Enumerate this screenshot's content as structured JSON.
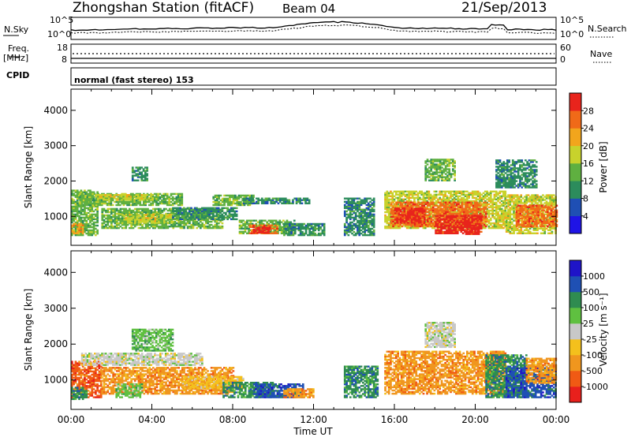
{
  "header": {
    "station": "Zhongshan Station (fitACF)",
    "beam": "Beam 04",
    "date": "21/Sep/2013"
  },
  "panels": {
    "nsky_label": "N.Sky",
    "nsky_ticks": [
      "10^5",
      "10^0"
    ],
    "nsearch_label": "N.Search",
    "nsearch_ticks": [
      "10^5",
      "10^0"
    ],
    "freq_label_top": "Freq.",
    "freq_label_unit": "[MHz]",
    "freq_ticks": [
      "18",
      "8"
    ],
    "nave_label": "Nave",
    "nave_ticks": [
      "60",
      "0"
    ],
    "cpid_label": "CPID",
    "cpid_text": "normal (fast stereo) 153"
  },
  "chart_data": [
    {
      "type": "heatmap",
      "name": "power",
      "ylabel": "Slant Range [km]",
      "yticks": [
        "1000",
        "2000",
        "3000",
        "4000"
      ],
      "ylim": [
        180,
        4600
      ],
      "xlim": [
        0,
        24
      ],
      "colorbar_label": "Power [dB]",
      "colorbar_ticks": [
        "4",
        "8",
        "12",
        "16",
        "20",
        "24",
        "28"
      ],
      "colors": [
        "#1f14e6",
        "#1f4fb4",
        "#2c8c5c",
        "#5fb040",
        "#c8d22c",
        "#f2a51c",
        "#f06a18",
        "#e8241c"
      ],
      "regions": [
        {
          "t": [
            0.0,
            1.3
          ],
          "r": [
            450,
            1750
          ],
          "level": 3
        },
        {
          "t": [
            0.0,
            0.6
          ],
          "r": [
            500,
            800
          ],
          "level": 5
        },
        {
          "t": [
            0.4,
            5.5
          ],
          "r": [
            1300,
            1650
          ],
          "level": 3
        },
        {
          "t": [
            1.2,
            4.0
          ],
          "r": [
            1450,
            1600
          ],
          "level": 4
        },
        {
          "t": [
            1.5,
            7.5
          ],
          "r": [
            650,
            1200
          ],
          "level": 3
        },
        {
          "t": [
            2.5,
            5.0
          ],
          "r": [
            800,
            1050
          ],
          "level": 4
        },
        {
          "t": [
            5.0,
            8.2
          ],
          "r": [
            900,
            1250
          ],
          "level": 2
        },
        {
          "t": [
            7.0,
            9.0
          ],
          "r": [
            1300,
            1600
          ],
          "level": 3
        },
        {
          "t": [
            8.5,
            11.8
          ],
          "r": [
            1350,
            1500
          ],
          "level": 2
        },
        {
          "t": [
            8.3,
            11.0
          ],
          "r": [
            500,
            900
          ],
          "level": 3
        },
        {
          "t": [
            8.8,
            10.2
          ],
          "r": [
            500,
            750
          ],
          "level": 6
        },
        {
          "t": [
            9.0,
            9.8
          ],
          "r": [
            520,
            680
          ],
          "level": 7
        },
        {
          "t": [
            10.5,
            12.5
          ],
          "r": [
            450,
            800
          ],
          "level": 2
        },
        {
          "t": [
            13.5,
            15.0
          ],
          "r": [
            450,
            1500
          ],
          "level": 2
        },
        {
          "t": [
            15.5,
            21.5
          ],
          "r": [
            650,
            1700
          ],
          "level": 4
        },
        {
          "t": [
            15.8,
            20.5
          ],
          "r": [
            700,
            1400
          ],
          "level": 6
        },
        {
          "t": [
            16.0,
            17.5
          ],
          "r": [
            800,
            1250
          ],
          "level": 7
        },
        {
          "t": [
            18.0,
            20.3
          ],
          "r": [
            500,
            1000
          ],
          "level": 7
        },
        {
          "t": [
            19.5,
            20.2
          ],
          "r": [
            480,
            700
          ],
          "level": 7
        },
        {
          "t": [
            21.5,
            24.0
          ],
          "r": [
            500,
            1600
          ],
          "level": 4
        },
        {
          "t": [
            22.0,
            24.0
          ],
          "r": [
            700,
            1300
          ],
          "level": 6
        },
        {
          "t": [
            21.0,
            23.0
          ],
          "r": [
            1800,
            2600
          ],
          "level": 2
        },
        {
          "t": [
            17.5,
            19.0
          ],
          "r": [
            2000,
            2600
          ],
          "level": 3
        },
        {
          "t": [
            3.0,
            3.8
          ],
          "r": [
            2000,
            2400
          ],
          "level": 2
        }
      ]
    },
    {
      "type": "heatmap",
      "name": "velocity",
      "ylabel": "Slant Range [km]",
      "xlabel": "Time UT",
      "yticks": [
        "1000",
        "2000",
        "3000",
        "4000"
      ],
      "ylim": [
        180,
        4600
      ],
      "xlim": [
        0,
        24
      ],
      "xticks": [
        "00:00",
        "04:00",
        "08:00",
        "12:00",
        "16:00",
        "20:00",
        "00:00"
      ],
      "colorbar_label": "Velocity [m s⁻¹]",
      "colorbar_ticks": [
        "-1000",
        "-500",
        "-100",
        "-25",
        "25",
        "100",
        "500",
        "1000"
      ],
      "colors": [
        "#e8201c",
        "#f05a14",
        "#f0961e",
        "#f4c01c",
        "#c8c8c8",
        "#5fc040",
        "#2f8c50",
        "#1f50b4",
        "#1f14c8"
      ],
      "regions": [
        {
          "t": [
            0.0,
            1.5
          ],
          "r": [
            500,
            1500
          ],
          "level": 1
        },
        {
          "t": [
            0.0,
            0.8
          ],
          "r": [
            450,
            800
          ],
          "level": 6
        },
        {
          "t": [
            0.5,
            6.5
          ],
          "r": [
            1400,
            1750
          ],
          "level": 4
        },
        {
          "t": [
            1.5,
            8.0
          ],
          "r": [
            600,
            1350
          ],
          "level": 2
        },
        {
          "t": [
            2.2,
            3.5
          ],
          "r": [
            500,
            900
          ],
          "level": 5
        },
        {
          "t": [
            3.0,
            5.0
          ],
          "r": [
            1800,
            2400
          ],
          "level": 5
        },
        {
          "t": [
            5.5,
            8.5
          ],
          "r": [
            750,
            1100
          ],
          "level": 3
        },
        {
          "t": [
            7.5,
            10.0
          ],
          "r": [
            500,
            950
          ],
          "level": 6
        },
        {
          "t": [
            9.0,
            11.5
          ],
          "r": [
            500,
            900
          ],
          "level": 7
        },
        {
          "t": [
            10.5,
            12.0
          ],
          "r": [
            500,
            750
          ],
          "level": 2
        },
        {
          "t": [
            13.5,
            15.2
          ],
          "r": [
            500,
            1400
          ],
          "level": 6
        },
        {
          "t": [
            15.5,
            21.5
          ],
          "r": [
            600,
            1800
          ],
          "level": 2
        },
        {
          "t": [
            17.5,
            19.0
          ],
          "r": [
            1900,
            2600
          ],
          "level": 4
        },
        {
          "t": [
            20.5,
            22.5
          ],
          "r": [
            500,
            1700
          ],
          "level": 6
        },
        {
          "t": [
            21.5,
            24.0
          ],
          "r": [
            500,
            1400
          ],
          "level": 7
        },
        {
          "t": [
            22.5,
            24.0
          ],
          "r": [
            900,
            1600
          ],
          "level": 2
        }
      ]
    }
  ]
}
